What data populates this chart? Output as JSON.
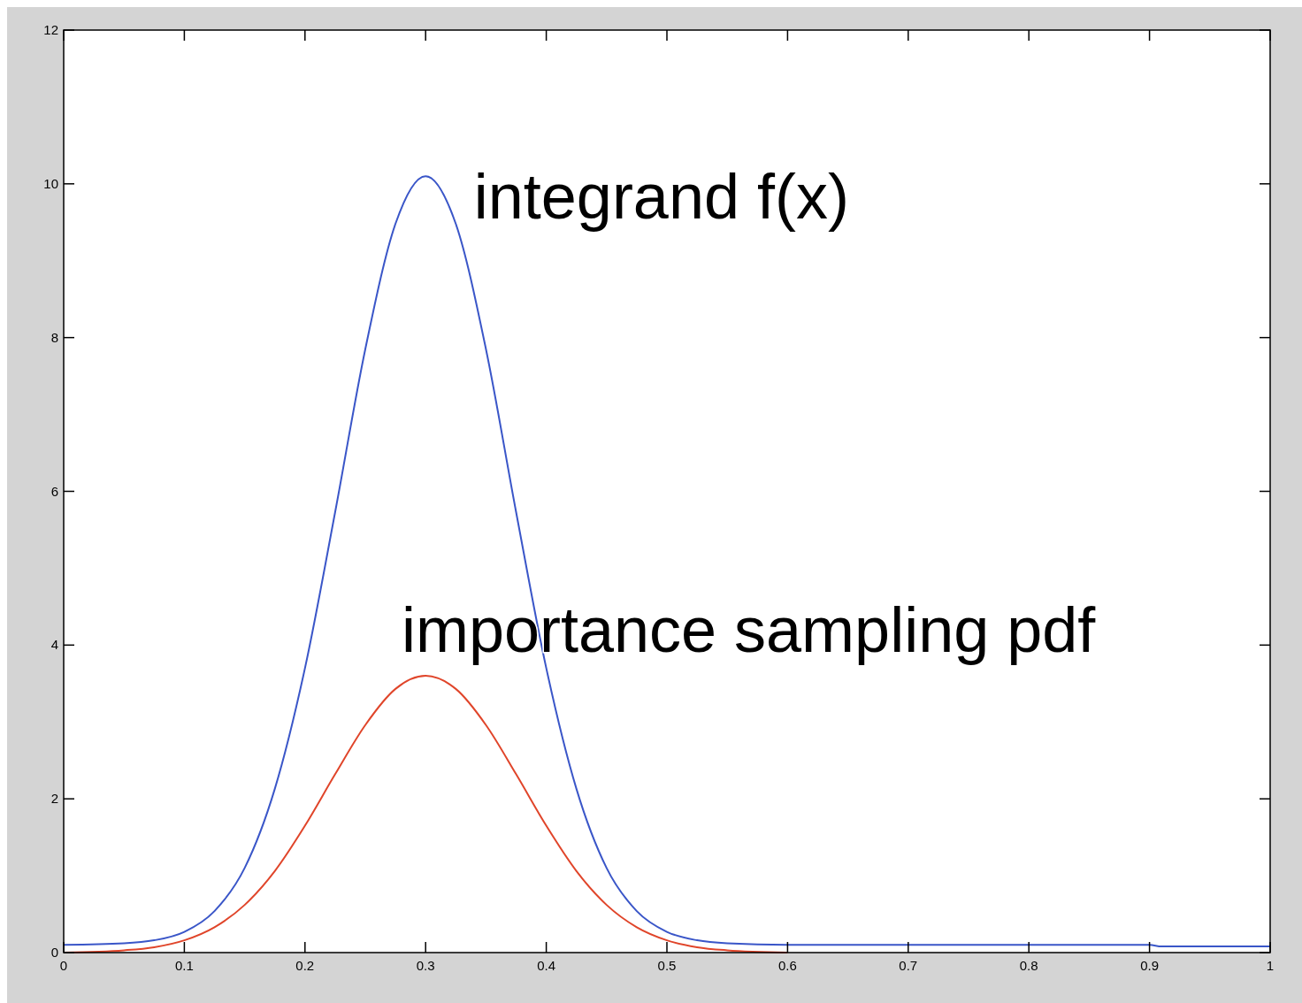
{
  "chart_data": {
    "type": "line",
    "annotations": [
      "integrand f(x)",
      "importance sampling pdf"
    ],
    "series": [
      {
        "color": "#3a56c8",
        "x": [
          0,
          0.05,
          0.075,
          0.1,
          0.125,
          0.15,
          0.175,
          0.2,
          0.225,
          0.25,
          0.275,
          0.3,
          0.325,
          0.35,
          0.375,
          0.4,
          0.425,
          0.45,
          0.475,
          0.5,
          0.525,
          0.55,
          0.6,
          0.7,
          0.8,
          0.9,
          0.91,
          1
        ],
        "values": [
          0.1,
          0.12,
          0.16,
          0.27,
          0.54,
          1.1,
          2.13,
          3.7,
          5.73,
          7.85,
          9.48,
          10.1,
          9.48,
          7.85,
          5.73,
          3.7,
          2.13,
          1.1,
          0.54,
          0.27,
          0.16,
          0.12,
          0.1,
          0.1,
          0.1,
          0.1,
          0.08,
          0.08
        ]
      },
      {
        "color": "#e0452a",
        "x": [
          0,
          0.05,
          0.075,
          0.1,
          0.125,
          0.15,
          0.175,
          0.2,
          0.225,
          0.25,
          0.275,
          0.3,
          0.325,
          0.35,
          0.375,
          0.4,
          0.425,
          0.45,
          0.475,
          0.5,
          0.525,
          0.55,
          0.6
        ],
        "values": [
          0,
          0.03,
          0.07,
          0.16,
          0.33,
          0.62,
          1.06,
          1.65,
          2.32,
          2.96,
          3.43,
          3.6,
          3.43,
          2.96,
          2.32,
          1.65,
          1.06,
          0.62,
          0.33,
          0.16,
          0.07,
          0.03,
          0
        ]
      }
    ],
    "xlim": [
      0,
      1
    ],
    "xticks": [
      0,
      0.1,
      0.2,
      0.3,
      0.4,
      0.5,
      0.6,
      0.7,
      0.8,
      0.9,
      1
    ],
    "ylim": [
      0,
      12
    ],
    "yticks": [
      0,
      2,
      4,
      6,
      8,
      10,
      12
    ],
    "grid": false,
    "marker": "none",
    "line_style": "solid"
  }
}
